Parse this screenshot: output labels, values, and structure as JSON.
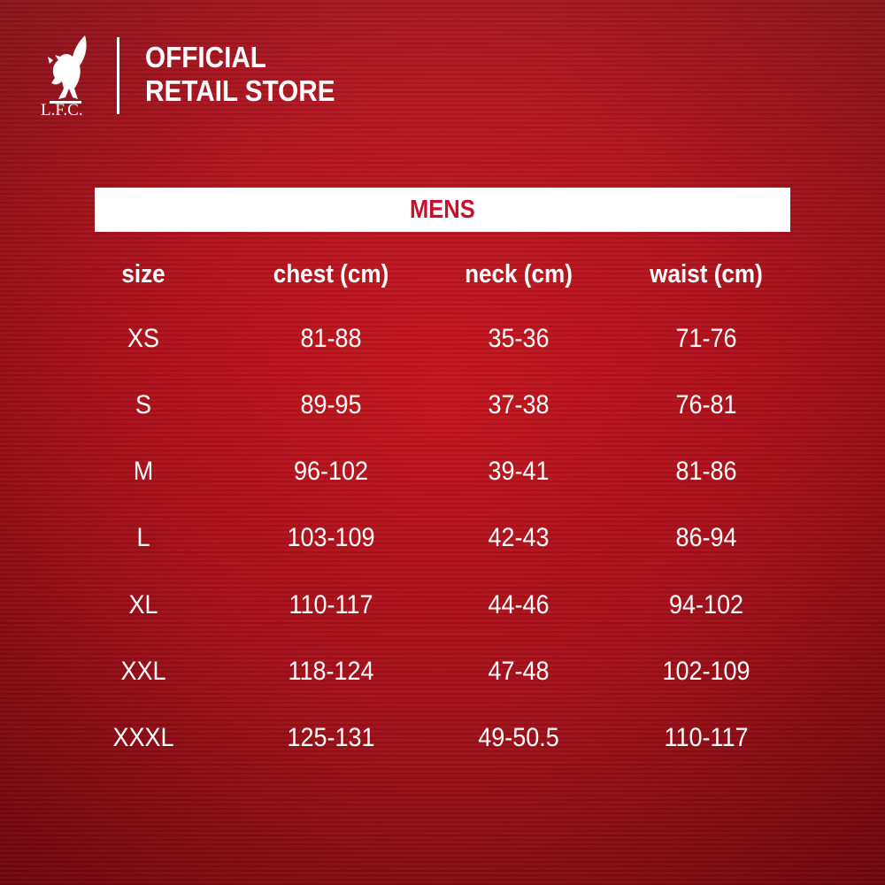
{
  "header": {
    "logo_text": "L.F.C.",
    "store_line1": "OFFICIAL",
    "store_line2": "RETAIL STORE"
  },
  "table": {
    "title": "MENS",
    "columns": [
      "size",
      "chest (cm)",
      "neck (cm)",
      "waist (cm)"
    ],
    "rows": [
      [
        "XS",
        "81-88",
        "35-36",
        "71-76"
      ],
      [
        "S",
        "89-95",
        "37-38",
        "76-81"
      ],
      [
        "M",
        "96-102",
        "39-41",
        "81-86"
      ],
      [
        "L",
        "103-109",
        "42-43",
        "86-94"
      ],
      [
        "XL",
        "110-117",
        "44-46",
        "94-102"
      ],
      [
        "XXL",
        "118-124",
        "47-48",
        "102-109"
      ],
      [
        "XXXL",
        "125-131",
        "49-50.5",
        "110-117"
      ]
    ]
  },
  "colors": {
    "accent": "#c8102e",
    "background": "#b0101a"
  }
}
